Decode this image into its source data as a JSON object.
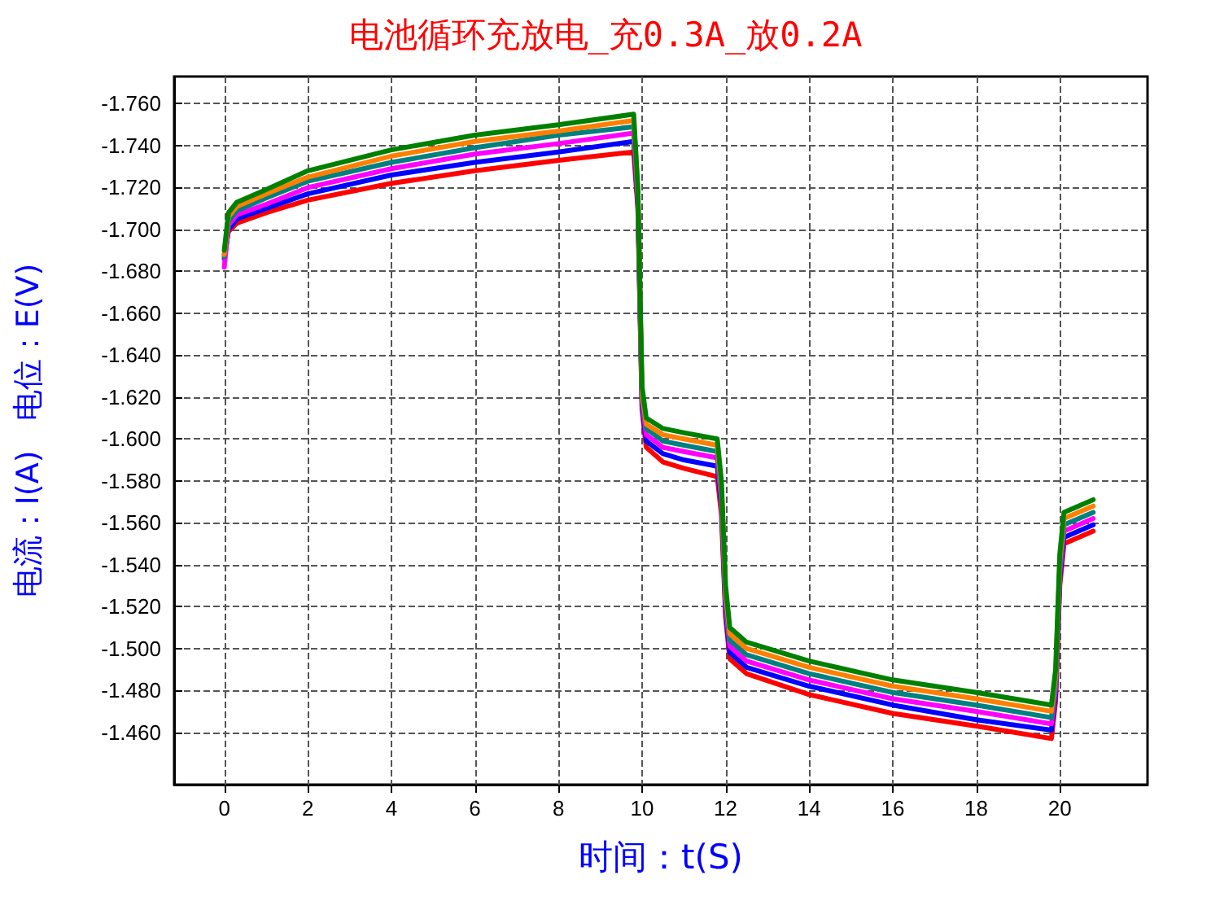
{
  "chart_data": {
    "type": "line",
    "title": "电池循环充放电_充0.3A_放0.2A",
    "xlabel": "时间：t(S)",
    "ylabel": "电流：I(A)   电位：E(V)",
    "x": [
      0,
      0.1,
      0.3,
      1,
      2,
      4,
      6,
      8,
      9.8,
      9.9,
      10.0,
      10.1,
      10.5,
      11,
      11.8,
      11.9,
      12.0,
      12.1,
      12.5,
      14,
      16,
      18,
      19.8,
      19.9,
      20.0,
      20.1,
      20.8
    ],
    "series": [
      {
        "color": "#ff0000",
        "values": [
          -1.688,
          -1.699,
          -1.703,
          -1.708,
          -1.714,
          -1.722,
          -1.728,
          -1.733,
          -1.737,
          -1.71,
          -1.614,
          -1.596,
          -1.589,
          -1.586,
          -1.582,
          -1.564,
          -1.515,
          -1.495,
          -1.488,
          -1.478,
          -1.469,
          -1.463,
          -1.457,
          -1.475,
          -1.53,
          -1.55,
          -1.556
        ]
      },
      {
        "color": "#0000ff",
        "values": [
          -1.686,
          -1.7,
          -1.705,
          -1.71,
          -1.717,
          -1.726,
          -1.732,
          -1.737,
          -1.742,
          -1.712,
          -1.616,
          -1.599,
          -1.593,
          -1.59,
          -1.587,
          -1.568,
          -1.518,
          -1.498,
          -1.491,
          -1.482,
          -1.473,
          -1.466,
          -1.461,
          -1.478,
          -1.533,
          -1.553,
          -1.559
        ]
      },
      {
        "color": "#ff00ff",
        "values": [
          -1.682,
          -1.702,
          -1.707,
          -1.712,
          -1.72,
          -1.729,
          -1.736,
          -1.741,
          -1.746,
          -1.714,
          -1.618,
          -1.602,
          -1.596,
          -1.594,
          -1.591,
          -1.571,
          -1.521,
          -1.501,
          -1.494,
          -1.485,
          -1.476,
          -1.47,
          -1.464,
          -1.481,
          -1.536,
          -1.556,
          -1.562
        ]
      },
      {
        "color": "#008080",
        "values": [
          -1.687,
          -1.704,
          -1.709,
          -1.715,
          -1.723,
          -1.732,
          -1.739,
          -1.745,
          -1.749,
          -1.716,
          -1.62,
          -1.605,
          -1.599,
          -1.597,
          -1.594,
          -1.574,
          -1.524,
          -1.504,
          -1.497,
          -1.488,
          -1.479,
          -1.473,
          -1.467,
          -1.484,
          -1.539,
          -1.559,
          -1.565
        ]
      },
      {
        "color": "#ff8000",
        "values": [
          -1.688,
          -1.706,
          -1.711,
          -1.717,
          -1.725,
          -1.735,
          -1.742,
          -1.747,
          -1.752,
          -1.718,
          -1.622,
          -1.607,
          -1.602,
          -1.6,
          -1.597,
          -1.577,
          -1.527,
          -1.507,
          -1.5,
          -1.491,
          -1.482,
          -1.476,
          -1.47,
          -1.487,
          -1.542,
          -1.562,
          -1.568
        ]
      },
      {
        "color": "#008000",
        "values": [
          -1.69,
          -1.708,
          -1.713,
          -1.719,
          -1.728,
          -1.738,
          -1.745,
          -1.75,
          -1.755,
          -1.72,
          -1.625,
          -1.61,
          -1.605,
          -1.603,
          -1.6,
          -1.58,
          -1.53,
          -1.51,
          -1.503,
          -1.494,
          -1.485,
          -1.479,
          -1.473,
          -1.49,
          -1.545,
          -1.565,
          -1.571
        ]
      }
    ],
    "xlim": [
      -1.2,
      22.1
    ],
    "xticks": [
      0,
      2,
      4,
      6,
      8,
      10,
      12,
      14,
      16,
      18,
      20
    ],
    "ylim": [
      -1.435,
      -1.773
    ],
    "yticks": [
      {
        "value": -1.76,
        "label": "-1.760"
      },
      {
        "value": -1.74,
        "label": "-1.740"
      },
      {
        "value": -1.72,
        "label": "-1.720"
      },
      {
        "value": -1.7,
        "label": "-1.700"
      },
      {
        "value": -1.68,
        "label": "-1.680"
      },
      {
        "value": -1.66,
        "label": "-1.660"
      },
      {
        "value": -1.64,
        "label": "-1.640"
      },
      {
        "value": -1.62,
        "label": "-1.620"
      },
      {
        "value": -1.6,
        "label": "-1.600"
      },
      {
        "value": -1.58,
        "label": "-1.580"
      },
      {
        "value": -1.56,
        "label": "-1.560"
      },
      {
        "value": -1.54,
        "label": "-1.540"
      },
      {
        "value": -1.52,
        "label": "-1.520"
      },
      {
        "value": -1.5,
        "label": "-1.500"
      },
      {
        "value": -1.48,
        "label": "-1.480"
      },
      {
        "value": -1.46,
        "label": "-1.460"
      }
    ],
    "grid": true,
    "marker": "none",
    "line_style": "solid"
  }
}
